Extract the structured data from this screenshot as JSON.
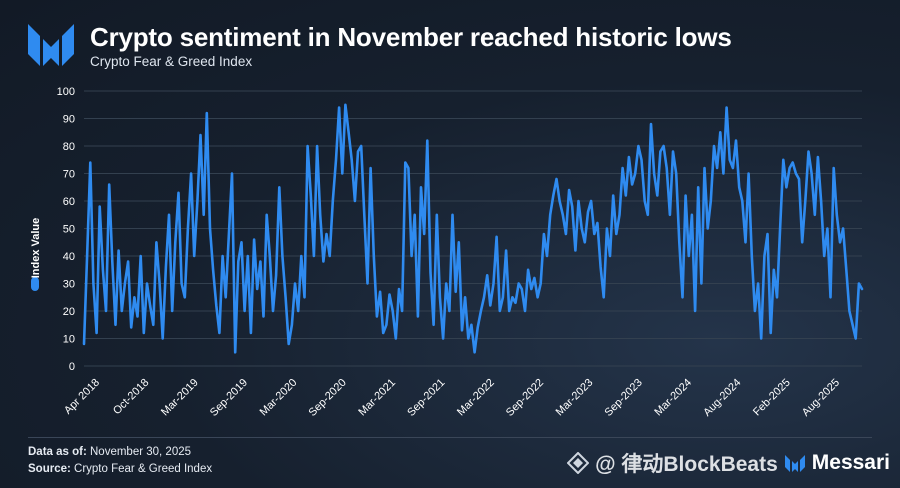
{
  "header": {
    "title": "Crypto sentiment in November reached historic lows",
    "subtitle": "Crypto Fear & Greed Index"
  },
  "footer": {
    "data_label": "Data as of:",
    "data_value": "November 30, 2025",
    "source_label": "Source:",
    "source_value": "Crypto Fear & Greed Index"
  },
  "watermark": {
    "handle": "@ 律动BlockBeats",
    "brand": "Messari"
  },
  "colors": {
    "line": "#2f8bf0",
    "text": "#ffffff",
    "grid": "#3a4658"
  },
  "chart_data": {
    "type": "line",
    "title": "Crypto sentiment in November reached historic lows",
    "subtitle": "Crypto Fear & Greed Index",
    "xlabel": "",
    "ylabel": "Index Value",
    "ylim": [
      0,
      100
    ],
    "yticks": [
      0,
      10,
      20,
      30,
      40,
      50,
      60,
      70,
      80,
      90,
      100
    ],
    "xticks": [
      "Apr 2018",
      "Oct 2018",
      "Mar 2019",
      "Sep 2019",
      "Mar 2020",
      "Sep 2020",
      "Mar 2021",
      "Sep 2021",
      "Mar 2022",
      "Sep 2022",
      "Mar 2023",
      "Sep 2023",
      "Mar 2024",
      "Aug 2024",
      "Feb 2025",
      "Aug 2025"
    ],
    "xtick_labels": [
      "Apr 2018",
      "Oct-2018",
      "Mar-2019",
      "Sep-2019",
      "Mar-2020",
      "Sep-2020",
      "Mar-2021",
      "Sep-2021",
      "Mar-2022",
      "Sep-2022",
      "Mar-2023",
      "Sep-2023",
      "Mar-2024",
      "Aug-2024",
      "Feb-2025",
      "Aug-2025"
    ],
    "legend": [
      "Index Value"
    ],
    "series": [
      {
        "name": "Index Value",
        "x_start": "Feb 2018",
        "x_end": "Nov 2025",
        "values": [
          8,
          40,
          74,
          30,
          12,
          58,
          35,
          20,
          66,
          38,
          15,
          42,
          20,
          30,
          38,
          14,
          25,
          18,
          40,
          12,
          30,
          22,
          15,
          45,
          30,
          10,
          36,
          55,
          20,
          45,
          63,
          30,
          25,
          50,
          70,
          40,
          60,
          84,
          55,
          92,
          50,
          35,
          22,
          12,
          40,
          25,
          48,
          70,
          5,
          38,
          45,
          20,
          40,
          12,
          46,
          28,
          38,
          18,
          55,
          40,
          20,
          33,
          65,
          40,
          25,
          8,
          15,
          30,
          20,
          40,
          25,
          80,
          62,
          40,
          80,
          55,
          38,
          48,
          40,
          60,
          75,
          94,
          70,
          95,
          85,
          75,
          60,
          78,
          80,
          55,
          30,
          72,
          40,
          18,
          27,
          12,
          15,
          26,
          20,
          10,
          28,
          20,
          74,
          72,
          40,
          55,
          18,
          65,
          48,
          82,
          34,
          15,
          55,
          25,
          10,
          30,
          20,
          55,
          27,
          45,
          13,
          25,
          10,
          15,
          5,
          14,
          20,
          25,
          33,
          22,
          30,
          47,
          20,
          25,
          42,
          20,
          25,
          23,
          30,
          28,
          20,
          35,
          28,
          32,
          25,
          30,
          48,
          40,
          55,
          62,
          68,
          60,
          55,
          48,
          64,
          58,
          42,
          60,
          50,
          45,
          56,
          60,
          48,
          52,
          36,
          25,
          50,
          40,
          62,
          48,
          55,
          72,
          62,
          76,
          66,
          70,
          80,
          75,
          60,
          55,
          88,
          70,
          62,
          78,
          80,
          72,
          55,
          78,
          70,
          45,
          25,
          62,
          40,
          55,
          20,
          65,
          30,
          72,
          50,
          60,
          80,
          72,
          85,
          70,
          94,
          75,
          72,
          82,
          65,
          60,
          45,
          70,
          40,
          20,
          30,
          10,
          40,
          48,
          12,
          35,
          25,
          50,
          75,
          65,
          72,
          74,
          70,
          68,
          45,
          60,
          78,
          70,
          55,
          76,
          60,
          40,
          50,
          25,
          72,
          55,
          45,
          50,
          35,
          20,
          15,
          10,
          30,
          28
        ]
      }
    ]
  }
}
